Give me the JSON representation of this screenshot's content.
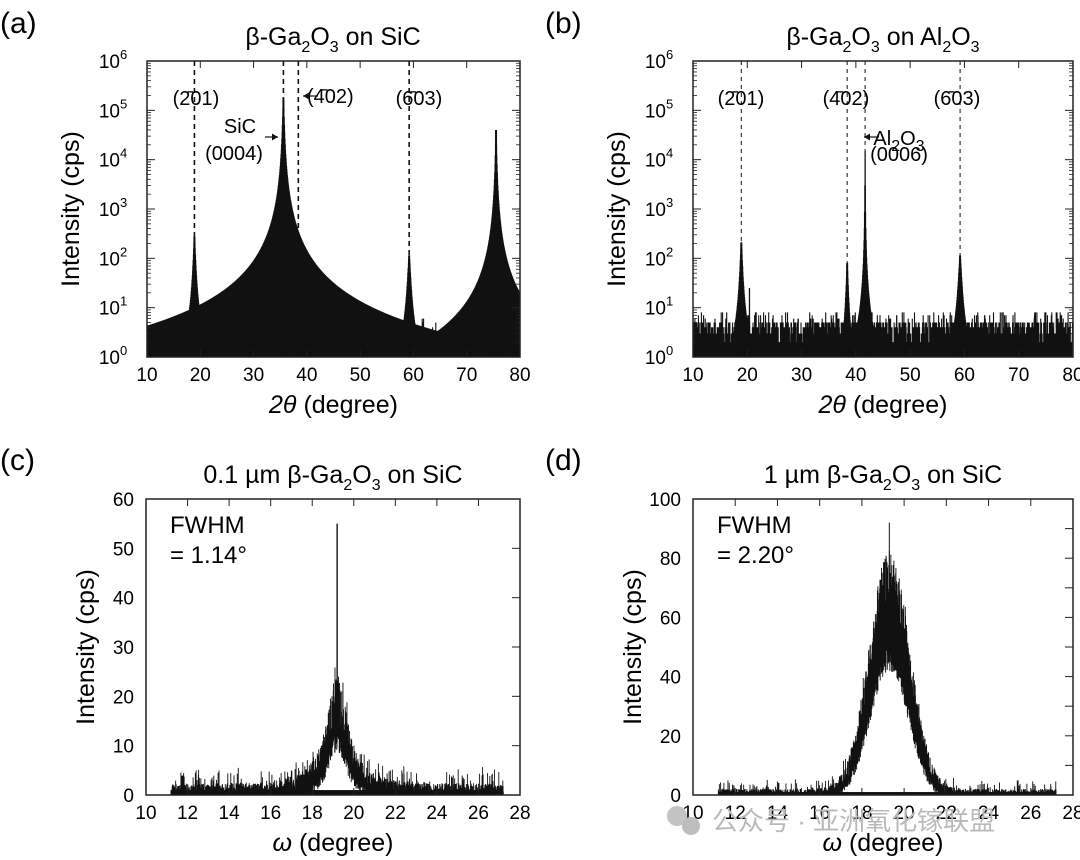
{
  "figure": {
    "watermark": "公众号 · 亚洲氧化镓联盟",
    "colors": {
      "line": "#111111",
      "frame": "#222222",
      "watermark": "#b9b9b9"
    }
  },
  "chart_data": [
    {
      "id": "a",
      "panel_label": "(a)",
      "type": "line",
      "title_parts": [
        "β-Ga",
        "2",
        "O",
        "3",
        " on SiC"
      ],
      "xlabel_italic": "2θ",
      "xlabel_rest": " (degree)",
      "ylabel": "Intensity (cps)",
      "yscale": "log",
      "xlim": [
        10,
        80
      ],
      "ylim": [
        1,
        1000000
      ],
      "xticks": [
        "10",
        "20",
        "30",
        "40",
        "50",
        "60",
        "70",
        "80"
      ],
      "yticks": [
        {
          "base": "10",
          "exp": "0"
        },
        {
          "base": "10",
          "exp": "1"
        },
        {
          "base": "10",
          "exp": "2"
        },
        {
          "base": "10",
          "exp": "3"
        },
        {
          "base": "10",
          "exp": "4"
        },
        {
          "base": "10",
          "exp": "5"
        },
        {
          "base": "10",
          "exp": "6"
        }
      ],
      "baseline_noise_cps": [
        1,
        3
      ],
      "peaks": [
        {
          "x": 18.9,
          "y": 280,
          "width": 0.35,
          "label": "(2̄01)"
        },
        {
          "x": 35.6,
          "y": 180000,
          "width": 0.25,
          "label": "SiC (0004)"
        },
        {
          "x": 38.4,
          "y": 85,
          "width": 0.3,
          "label": "(4̄02)"
        },
        {
          "x": 59.2,
          "y": 115,
          "width": 0.45,
          "label": "(6̄03)"
        },
        {
          "x": 75.5,
          "y": 40000,
          "width": 0.2,
          "label": ""
        }
      ],
      "reference_lines": [
        18.9,
        35.6,
        38.4,
        59.2
      ],
      "annotations": [
        {
          "text": "(2̄01)"
        },
        {
          "text": "SiC"
        },
        {
          "text": "(0004)"
        },
        {
          "text": "(4̄02)"
        },
        {
          "text": "(6̄03)"
        }
      ]
    },
    {
      "id": "b",
      "panel_label": "(b)",
      "type": "line",
      "title_parts": [
        "β-Ga",
        "2",
        "O",
        "3",
        " on Al",
        "2",
        "O",
        "3"
      ],
      "xlabel_italic": "2θ",
      "xlabel_rest": " (degree)",
      "ylabel": "Intensity (cps)",
      "yscale": "log",
      "xlim": [
        10,
        80
      ],
      "ylim": [
        1,
        1000000
      ],
      "xticks": [
        "10",
        "20",
        "30",
        "40",
        "50",
        "60",
        "70",
        "80"
      ],
      "yticks": [
        {
          "base": "10",
          "exp": "0"
        },
        {
          "base": "10",
          "exp": "1"
        },
        {
          "base": "10",
          "exp": "2"
        },
        {
          "base": "10",
          "exp": "3"
        },
        {
          "base": "10",
          "exp": "4"
        },
        {
          "base": "10",
          "exp": "5"
        },
        {
          "base": "10",
          "exp": "6"
        }
      ],
      "baseline_noise_cps": [
        1,
        5
      ],
      "peaks": [
        {
          "x": 18.9,
          "y": 210,
          "width": 0.35,
          "label": "(2̄01)"
        },
        {
          "x": 20.4,
          "y": 25,
          "width": 0.05,
          "label": ""
        },
        {
          "x": 38.4,
          "y": 80,
          "width": 0.3,
          "label": "(4̄02)"
        },
        {
          "x": 41.7,
          "y": 15000,
          "width": 0.05,
          "label": "Al2O3 (0006)"
        },
        {
          "x": 59.2,
          "y": 115,
          "width": 0.45,
          "label": "(6̄03)"
        }
      ],
      "reference_lines": [
        18.9,
        38.4,
        41.7,
        59.2
      ],
      "annotations": [
        {
          "text": "(2̄01)"
        },
        {
          "text": "(4̄02)"
        },
        {
          "text": "(6̄03)"
        },
        {
          "text_parts": [
            "Al",
            "2",
            "O",
            "3"
          ]
        },
        {
          "text": "(0006)"
        }
      ]
    },
    {
      "id": "c",
      "panel_label": "(c)",
      "type": "line",
      "title_parts": [
        "0.1 µm β-Ga",
        "2",
        "O",
        "3",
        " on SiC"
      ],
      "xlabel_italic": "ω",
      "xlabel_rest": " (degree)",
      "ylabel": "Intensity (cps)",
      "yscale": "linear",
      "xlim": [
        10,
        28
      ],
      "ylim": [
        0,
        60
      ],
      "xticks": [
        "10",
        "12",
        "14",
        "16",
        "18",
        "20",
        "22",
        "24",
        "26",
        "28"
      ],
      "yticks": [
        "0",
        "10",
        "20",
        "30",
        "40",
        "50",
        "60"
      ],
      "data_range_x": [
        11.2,
        27.2
      ],
      "peak_center": 19.2,
      "peak_height": 20,
      "peak_fwhm_deg": 1.14,
      "spike": {
        "x": 19.2,
        "y": 55
      },
      "baseline_cps": 1,
      "fwhm_text": [
        "FWHM",
        "= 1.14°"
      ]
    },
    {
      "id": "d",
      "panel_label": "(d)",
      "type": "line",
      "title_parts": [
        "1 µm β-Ga",
        "2",
        "O",
        "3",
        " on SiC"
      ],
      "xlabel_italic": "ω",
      "xlabel_rest": " (degree)",
      "ylabel": "Intensity (cps)",
      "yscale": "linear",
      "xlim": [
        10,
        28
      ],
      "ylim": [
        0,
        100
      ],
      "xticks": [
        "10",
        "12",
        "14",
        "16",
        "18",
        "20",
        "22",
        "24",
        "26",
        "28"
      ],
      "yticks": [
        "0",
        "20",
        "40",
        "60",
        "80",
        "100"
      ],
      "data_range_x": [
        11.2,
        27.2
      ],
      "peak_center": 19.3,
      "peak_height": 72,
      "peak_fwhm_deg": 2.2,
      "max_value": 92,
      "baseline_cps": 1,
      "fwhm_text": [
        "FWHM",
        "= 2.20°"
      ]
    }
  ]
}
